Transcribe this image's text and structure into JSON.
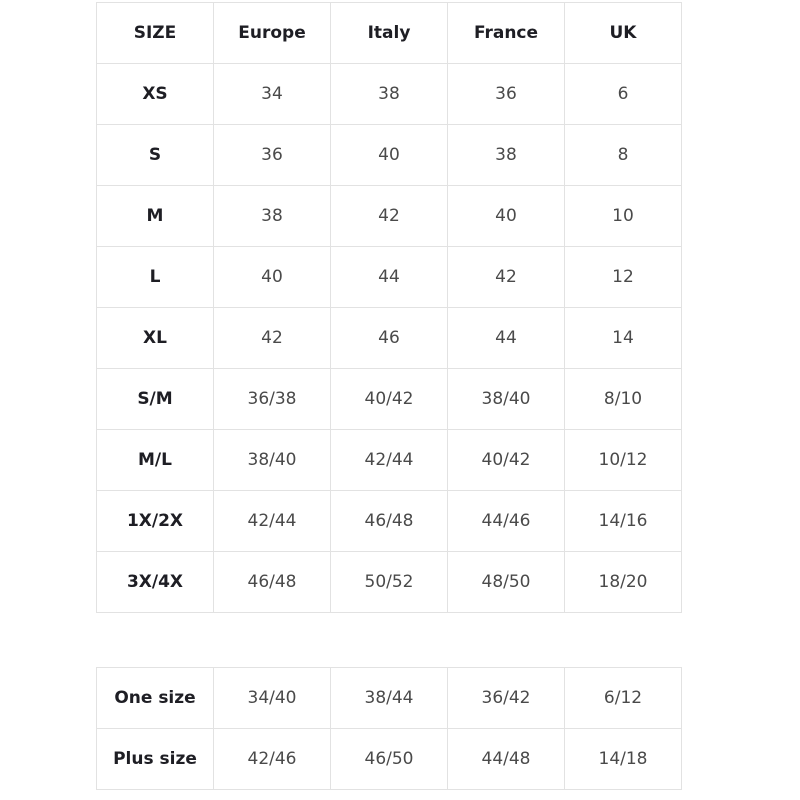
{
  "headers": [
    "SIZE",
    "Europe",
    "Italy",
    "France",
    "UK"
  ],
  "rows": [
    [
      "XS",
      "34",
      "38",
      "36",
      "6"
    ],
    [
      "S",
      "36",
      "40",
      "38",
      "8"
    ],
    [
      "M",
      "38",
      "42",
      "40",
      "10"
    ],
    [
      "L",
      "40",
      "44",
      "42",
      "12"
    ],
    [
      "XL",
      "42",
      "46",
      "44",
      "14"
    ],
    [
      "S/M",
      "36/38",
      "40/42",
      "38/40",
      "8/10"
    ],
    [
      "M/L",
      "38/40",
      "42/44",
      "40/42",
      "10/12"
    ],
    [
      "1X/2X",
      "42/44",
      "46/48",
      "44/46",
      "14/16"
    ],
    [
      "3X/4X",
      "46/48",
      "50/52",
      "48/50",
      "18/20"
    ]
  ],
  "extra_rows": [
    [
      "One size",
      "34/40",
      "38/44",
      "36/42",
      "6/12"
    ],
    [
      "Plus size",
      "42/46",
      "46/50",
      "44/48",
      "14/18"
    ]
  ],
  "colors": {
    "border": "#e2e2e2",
    "label_text": "#1e1e24",
    "value_text": "#4a4a4a"
  }
}
